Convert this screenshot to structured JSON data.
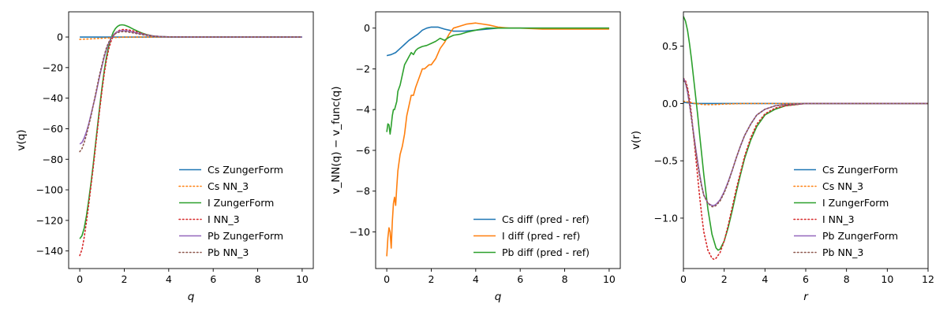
{
  "chart_data": [
    {
      "type": "line",
      "xlabel": "q",
      "ylabel": "v(q)",
      "xlim": [
        -0.5,
        10.5
      ],
      "ylim": [
        -151.5,
        16.5
      ],
      "xticks": [
        0,
        2,
        4,
        6,
        8,
        10
      ],
      "yticks": [
        0,
        -20,
        -40,
        -60,
        -80,
        -100,
        -120,
        -140
      ],
      "xtick_labels": [
        "0",
        "2",
        "4",
        "6",
        "8",
        "10"
      ],
      "ytick_labels": [
        "0",
        "−20",
        "−40",
        "−60",
        "−80",
        "−100",
        "−120",
        "−140"
      ],
      "grid": false,
      "legend_position": "lower-right",
      "series": [
        {
          "name": "Cs ZungerForm",
          "color": "#1f77b4",
          "style": "solid",
          "x": [
            0,
            0.5,
            1,
            1.5,
            2,
            3,
            4,
            6,
            8,
            10
          ],
          "y": [
            0,
            0,
            0,
            0,
            0,
            0,
            0,
            0,
            0,
            0
          ]
        },
        {
          "name": "Cs NN_3",
          "color": "#ff7f0e",
          "style": "dotted",
          "x": [
            0,
            0.5,
            1,
            1.5,
            2,
            3,
            4,
            6,
            8,
            10
          ],
          "y": [
            -1.5,
            -1.2,
            -0.8,
            -0.4,
            -0.1,
            0,
            0,
            0,
            0,
            0
          ]
        },
        {
          "name": "I ZungerForm",
          "color": "#2ca02c",
          "style": "solid",
          "x": [
            0,
            0.1,
            0.2,
            0.3,
            0.4,
            0.5,
            0.6,
            0.7,
            0.8,
            0.9,
            1.0,
            1.1,
            1.2,
            1.3,
            1.4,
            1.5,
            1.6,
            1.7,
            1.8,
            1.9,
            2.0,
            2.1,
            2.2,
            2.4,
            2.6,
            2.8,
            3.0,
            3.3,
            3.6,
            4.0,
            5.0,
            6.0,
            8.0,
            10.0
          ],
          "y": [
            -132,
            -130,
            -125,
            -117,
            -107,
            -96,
            -84,
            -71,
            -58,
            -45,
            -33,
            -22,
            -13,
            -6,
            -1,
            3,
            5.5,
            7,
            7.8,
            8,
            7.8,
            7.3,
            6.7,
            5.2,
            3.8,
            2.6,
            1.6,
            0.7,
            0.3,
            0.1,
            0,
            0,
            0,
            0
          ]
        },
        {
          "name": "I NN_3",
          "color": "#d62728",
          "style": "dotted",
          "x": [
            0,
            0.1,
            0.2,
            0.3,
            0.4,
            0.5,
            0.6,
            0.7,
            0.8,
            0.9,
            1.0,
            1.1,
            1.2,
            1.3,
            1.4,
            1.5,
            1.6,
            1.7,
            1.8,
            1.9,
            2.0,
            2.1,
            2.2,
            2.4,
            2.6,
            2.8,
            3.0,
            3.3,
            3.6,
            4.0,
            5.0,
            6.0,
            8.0,
            10.0
          ],
          "y": [
            -143,
            -139,
            -131,
            -121,
            -110,
            -98,
            -86,
            -73,
            -60,
            -47,
            -35,
            -24,
            -15,
            -8,
            -3,
            0.5,
            2.5,
            3.8,
            4.5,
            4.8,
            4.9,
            4.8,
            4.6,
            4,
            3.2,
            2.3,
            1.5,
            0.7,
            0.3,
            0.1,
            0,
            0,
            0,
            0
          ]
        },
        {
          "name": "Pb ZungerForm",
          "color": "#9467bd",
          "style": "solid",
          "x": [
            0,
            0.1,
            0.2,
            0.3,
            0.4,
            0.5,
            0.6,
            0.7,
            0.8,
            0.9,
            1.0,
            1.1,
            1.2,
            1.3,
            1.4,
            1.5,
            1.6,
            1.7,
            1.8,
            1.9,
            2.0,
            2.1,
            2.2,
            2.4,
            2.6,
            2.8,
            3.0,
            3.3,
            3.6,
            4.0,
            5.0,
            6.0,
            8.0,
            10.0
          ],
          "y": [
            -70,
            -69,
            -66,
            -62,
            -57,
            -51,
            -45,
            -39,
            -32,
            -25,
            -19,
            -13,
            -8,
            -4,
            -1,
            1.2,
            2.6,
            3.4,
            3.9,
            4.1,
            4.1,
            4,
            3.8,
            3.2,
            2.5,
            1.9,
            1.3,
            0.6,
            0.3,
            0.1,
            0,
            0,
            0,
            0
          ]
        },
        {
          "name": "Pb NN_3",
          "color": "#8c564b",
          "style": "dotted",
          "x": [
            0,
            0.1,
            0.2,
            0.3,
            0.4,
            0.5,
            0.6,
            0.7,
            0.8,
            0.9,
            1.0,
            1.1,
            1.2,
            1.3,
            1.4,
            1.5,
            1.6,
            1.7,
            1.8,
            1.9,
            2.0,
            2.1,
            2.2,
            2.4,
            2.6,
            2.8,
            3.0,
            3.3,
            3.6,
            4.0,
            5.0,
            6.0,
            8.0,
            10.0
          ],
          "y": [
            -75,
            -73,
            -69,
            -64,
            -58,
            -52,
            -45,
            -38,
            -31,
            -24,
            -18,
            -12,
            -7,
            -3.5,
            -0.8,
            1,
            2.2,
            2.9,
            3.3,
            3.5,
            3.5,
            3.4,
            3.2,
            2.7,
            2.1,
            1.6,
            1.1,
            0.5,
            0.2,
            0.1,
            0,
            0,
            0,
            0
          ]
        }
      ]
    },
    {
      "type": "line",
      "xlabel": "q",
      "ylabel": "v_NN(q) − v_func(q)",
      "xlim": [
        -0.5,
        10.5
      ],
      "ylim": [
        -11.8,
        0.8
      ],
      "xticks": [
        0,
        2,
        4,
        6,
        8,
        10
      ],
      "yticks": [
        0,
        -2,
        -4,
        -6,
        -8,
        -10
      ],
      "xtick_labels": [
        "0",
        "2",
        "4",
        "6",
        "8",
        "10"
      ],
      "ytick_labels": [
        "0",
        "−2",
        "−4",
        "−6",
        "−8",
        "−10"
      ],
      "grid": false,
      "legend_position": "lower-right",
      "series": [
        {
          "name": "Cs diff (pred - ref)",
          "color": "#1f77b4",
          "style": "solid",
          "x": [
            0,
            0.2,
            0.4,
            0.6,
            0.8,
            1.0,
            1.2,
            1.4,
            1.6,
            1.8,
            2.0,
            2.3,
            2.6,
            3.0,
            3.5,
            4.0,
            5.0,
            6.0,
            8.0,
            10.0
          ],
          "y": [
            -1.35,
            -1.3,
            -1.2,
            -1.0,
            -0.8,
            -0.6,
            -0.45,
            -0.3,
            -0.1,
            0,
            0.05,
            0.05,
            -0.05,
            -0.15,
            -0.15,
            -0.1,
            0,
            0,
            0,
            0
          ]
        },
        {
          "name": "I diff (pred - ref)",
          "color": "#ff7f0e",
          "style": "solid",
          "x": [
            0,
            0.05,
            0.1,
            0.15,
            0.2,
            0.25,
            0.3,
            0.35,
            0.4,
            0.45,
            0.5,
            0.6,
            0.7,
            0.8,
            0.9,
            1.0,
            1.1,
            1.2,
            1.3,
            1.4,
            1.5,
            1.6,
            1.7,
            1.8,
            1.9,
            2.0,
            2.2,
            2.4,
            2.6,
            2.8,
            3.0,
            3.3,
            3.6,
            4.0,
            4.3,
            4.6,
            5.0,
            5.5,
            6.0,
            7.0,
            8.0,
            10.0
          ],
          "y": [
            -11.2,
            -10.3,
            -9.8,
            -10.0,
            -10.8,
            -9.5,
            -8.6,
            -8.3,
            -8.7,
            -7.8,
            -7.0,
            -6.2,
            -5.8,
            -5.2,
            -4.3,
            -3.8,
            -3.3,
            -3.3,
            -2.9,
            -2.6,
            -2.3,
            -2.0,
            -2.0,
            -1.9,
            -1.8,
            -1.8,
            -1.5,
            -1.0,
            -0.7,
            -0.3,
            0.0,
            0.1,
            0.2,
            0.25,
            0.2,
            0.15,
            0.05,
            0,
            0,
            -0.05,
            -0.05,
            -0.05
          ]
        },
        {
          "name": "Pb diff (pred - ref)",
          "color": "#2ca02c",
          "style": "solid",
          "x": [
            0,
            0.05,
            0.1,
            0.15,
            0.2,
            0.25,
            0.3,
            0.35,
            0.4,
            0.45,
            0.5,
            0.6,
            0.7,
            0.8,
            0.9,
            1.0,
            1.1,
            1.2,
            1.3,
            1.4,
            1.5,
            1.6,
            1.8,
            2.0,
            2.2,
            2.4,
            2.6,
            2.8,
            3.0,
            3.3,
            3.6,
            4.0,
            4.5,
            5.0,
            6.0,
            8.0,
            10.0
          ],
          "y": [
            -5.1,
            -4.7,
            -4.75,
            -5.2,
            -4.8,
            -4.3,
            -4.0,
            -4.0,
            -3.8,
            -3.6,
            -3.1,
            -2.8,
            -2.3,
            -1.8,
            -1.6,
            -1.4,
            -1.2,
            -1.3,
            -1.1,
            -1.0,
            -0.95,
            -0.9,
            -0.85,
            -0.75,
            -0.65,
            -0.5,
            -0.6,
            -0.45,
            -0.35,
            -0.3,
            -0.2,
            -0.1,
            0,
            0,
            0,
            0,
            0
          ]
        }
      ]
    },
    {
      "type": "line",
      "xlabel": "r",
      "ylabel": "v(r)",
      "xlim": [
        0,
        12
      ],
      "ylim": [
        -1.44,
        0.8
      ],
      "xticks": [
        0,
        2,
        4,
        6,
        8,
        10,
        12
      ],
      "yticks": [
        0.5,
        0.0,
        -0.5,
        -1.0
      ],
      "xtick_labels": [
        "0",
        "2",
        "4",
        "6",
        "8",
        "10",
        "12"
      ],
      "ytick_labels": [
        "0.5",
        "0.0",
        "−0.5",
        "−1.0"
      ],
      "grid": false,
      "legend_position": "lower-right",
      "series": [
        {
          "name": "Cs ZungerForm",
          "color": "#1f77b4",
          "style": "solid",
          "x": [
            0,
            0.5,
            1,
            2,
            4,
            6,
            8,
            10,
            12
          ],
          "y": [
            0.01,
            0.0,
            0.0,
            0.0,
            0.0,
            0.0,
            0.0,
            0.0,
            0.0
          ]
        },
        {
          "name": "Cs NN_3",
          "color": "#ff7f0e",
          "style": "dotted",
          "x": [
            0,
            0.3,
            0.6,
            1.0,
            1.5,
            2.0,
            3.0,
            4.0,
            6.0,
            8.0,
            12.0
          ],
          "y": [
            0.02,
            0.01,
            0.0,
            -0.01,
            -0.01,
            -0.005,
            0,
            0,
            0,
            0,
            0
          ]
        },
        {
          "name": "I ZungerForm",
          "color": "#2ca02c",
          "style": "solid",
          "x": [
            0,
            0.1,
            0.2,
            0.3,
            0.4,
            0.5,
            0.6,
            0.7,
            0.8,
            0.9,
            1.0,
            1.2,
            1.4,
            1.6,
            1.7,
            1.8,
            2.0,
            2.2,
            2.4,
            2.6,
            2.8,
            3.0,
            3.3,
            3.6,
            4.0,
            4.5,
            5.0,
            5.5,
            6.0,
            7.0,
            8.0,
            10.0,
            12.0
          ],
          "y": [
            0.76,
            0.72,
            0.64,
            0.52,
            0.38,
            0.22,
            0.06,
            -0.1,
            -0.28,
            -0.45,
            -0.62,
            -0.92,
            -1.14,
            -1.26,
            -1.28,
            -1.27,
            -1.2,
            -1.08,
            -0.93,
            -0.77,
            -0.62,
            -0.48,
            -0.32,
            -0.2,
            -0.1,
            -0.05,
            -0.02,
            -0.01,
            0,
            0,
            0,
            0,
            0
          ]
        },
        {
          "name": "I NN_3",
          "color": "#d62728",
          "style": "dotted",
          "x": [
            0,
            0.1,
            0.2,
            0.3,
            0.4,
            0.5,
            0.6,
            0.7,
            0.8,
            0.9,
            1.0,
            1.2,
            1.4,
            1.5,
            1.6,
            1.8,
            2.0,
            2.2,
            2.4,
            2.6,
            2.8,
            3.0,
            3.3,
            3.6,
            4.0,
            4.5,
            5.0,
            6.0,
            8.0,
            12.0
          ],
          "y": [
            0.22,
            0.2,
            0.14,
            0.04,
            -0.1,
            -0.28,
            -0.46,
            -0.64,
            -0.82,
            -0.98,
            -1.12,
            -1.28,
            -1.35,
            -1.36,
            -1.35,
            -1.3,
            -1.2,
            -1.06,
            -0.9,
            -0.74,
            -0.6,
            -0.46,
            -0.3,
            -0.18,
            -0.09,
            -0.04,
            -0.02,
            0,
            0,
            0
          ]
        },
        {
          "name": "Pb ZungerForm",
          "color": "#9467bd",
          "style": "solid",
          "x": [
            0,
            0.1,
            0.2,
            0.3,
            0.4,
            0.5,
            0.6,
            0.7,
            0.8,
            0.9,
            1.0,
            1.2,
            1.4,
            1.5,
            1.6,
            1.8,
            2.0,
            2.2,
            2.4,
            2.6,
            2.8,
            3.0,
            3.3,
            3.6,
            4.0,
            4.5,
            5.0,
            6.0,
            8.0,
            12.0
          ],
          "y": [
            0.22,
            0.18,
            0.1,
            -0.01,
            -0.13,
            -0.26,
            -0.39,
            -0.51,
            -0.62,
            -0.72,
            -0.8,
            -0.87,
            -0.89,
            -0.89,
            -0.88,
            -0.84,
            -0.77,
            -0.68,
            -0.58,
            -0.47,
            -0.37,
            -0.28,
            -0.18,
            -0.1,
            -0.05,
            -0.02,
            -0.01,
            0,
            0,
            0
          ]
        },
        {
          "name": "Pb NN_3",
          "color": "#8c564b",
          "style": "dotted",
          "x": [
            0,
            0.1,
            0.2,
            0.3,
            0.4,
            0.5,
            0.6,
            0.7,
            0.8,
            0.9,
            1.0,
            1.2,
            1.4,
            1.5,
            1.6,
            1.8,
            2.0,
            2.2,
            2.4,
            2.6,
            2.8,
            3.0,
            3.3,
            3.6,
            4.0,
            4.5,
            5.0,
            6.0,
            8.0,
            12.0
          ],
          "y": [
            0.2,
            0.18,
            0.12,
            0.0,
            -0.14,
            -0.28,
            -0.41,
            -0.53,
            -0.64,
            -0.73,
            -0.8,
            -0.87,
            -0.9,
            -0.9,
            -0.89,
            -0.85,
            -0.78,
            -0.69,
            -0.58,
            -0.47,
            -0.37,
            -0.28,
            -0.18,
            -0.1,
            -0.05,
            -0.02,
            -0.01,
            0,
            0,
            0
          ]
        }
      ]
    }
  ]
}
